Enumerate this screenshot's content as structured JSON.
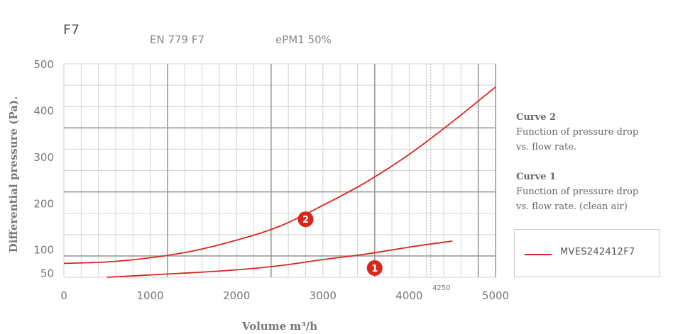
{
  "header": {
    "filter_class": "F7",
    "standard": "EN 779 F7",
    "iso_class": "ePM1 50%"
  },
  "notes": [
    {
      "title": "Curve 2",
      "text": [
        "Function of pressure drop",
        "vs. flow rate."
      ]
    },
    {
      "title": "Curve 1",
      "text": [
        "Function of pressure drop",
        "vs. flow rate. (clean air)"
      ]
    }
  ],
  "legend": {
    "label": "MVES242412F7"
  },
  "colors": {
    "curve": "#d9261c",
    "grid_minor": "#d4d4d4",
    "grid_major": "#9a9a9a",
    "text": "#777777"
  },
  "chart_data": {
    "type": "line",
    "xlabel": "Volume m³/h",
    "ylabel": "Differential pressure (Pa).",
    "xlim": [
      0,
      5000
    ],
    "ylim": [
      40,
      500
    ],
    "x_ticks": [
      0,
      1000,
      2000,
      3000,
      4000,
      5000
    ],
    "x_tick_labels": [
      "0",
      "1000",
      "2000",
      "3000",
      "4000",
      "5000"
    ],
    "y_ticks": [
      50,
      100,
      200,
      300,
      400,
      500
    ],
    "y_tick_labels": [
      "50",
      "100",
      "200",
      "300",
      "400",
      "500"
    ],
    "grid": true,
    "rated_flow": {
      "x": 4250,
      "label": "4250"
    },
    "series": [
      {
        "marker": "2",
        "marker_at": [
          2800,
          165
        ],
        "x": [
          0,
          500,
          1000,
          1500,
          2000,
          2500,
          3000,
          3500,
          4000,
          4500,
          5000
        ],
        "values": [
          70,
          73,
          82,
          97,
          120,
          150,
          195,
          245,
          305,
          375,
          450
        ]
      },
      {
        "marker": "1",
        "marker_at": [
          3600,
          60
        ],
        "x": [
          500,
          1000,
          1500,
          2000,
          2500,
          3000,
          3500,
          4000,
          4500
        ],
        "values": [
          40,
          45,
          50,
          56,
          65,
          78,
          90,
          105,
          118
        ]
      }
    ]
  }
}
